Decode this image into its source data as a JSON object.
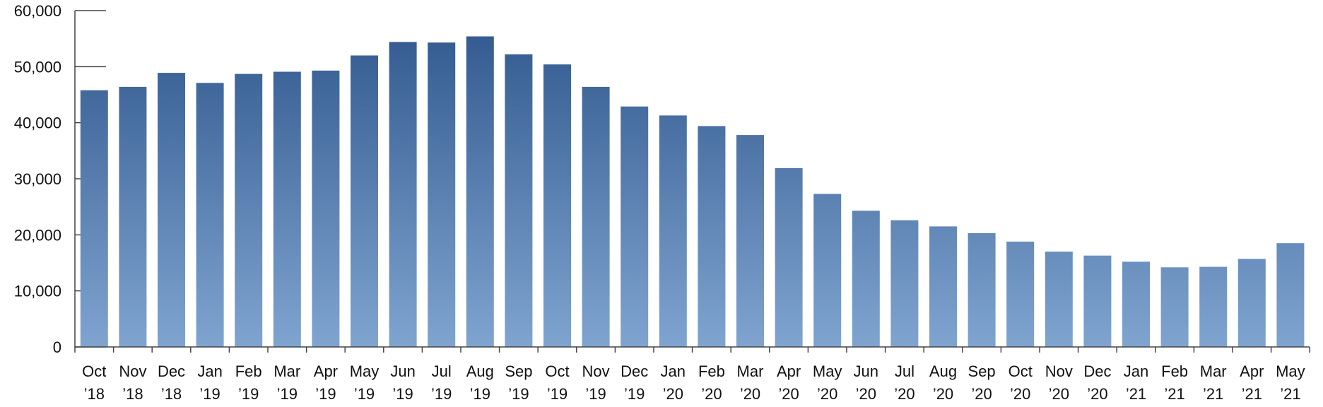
{
  "chart_data": {
    "type": "bar",
    "title": "",
    "xlabel": "",
    "ylabel": "",
    "ylim": [
      0,
      60000
    ],
    "yticks": [
      "0",
      "10,000",
      "20,000",
      "30,000",
      "40,000",
      "50,000",
      "60,000"
    ],
    "grid": false,
    "legend": "none",
    "categories": [
      {
        "month": "Oct",
        "year": "’18"
      },
      {
        "month": "Nov",
        "year": "’18"
      },
      {
        "month": "Dec",
        "year": "’18"
      },
      {
        "month": "Jan",
        "year": "’19"
      },
      {
        "month": "Feb",
        "year": "’19"
      },
      {
        "month": "Mar",
        "year": "’19"
      },
      {
        "month": "Apr",
        "year": "’19"
      },
      {
        "month": "May",
        "year": "’19"
      },
      {
        "month": "Jun",
        "year": "’19"
      },
      {
        "month": "Jul",
        "year": "’19"
      },
      {
        "month": "Aug",
        "year": "’19"
      },
      {
        "month": "Sep",
        "year": "’19"
      },
      {
        "month": "Oct",
        "year": "’19"
      },
      {
        "month": "Nov",
        "year": "’19"
      },
      {
        "month": "Dec",
        "year": "’19"
      },
      {
        "month": "Jan",
        "year": "’20"
      },
      {
        "month": "Feb",
        "year": "’20"
      },
      {
        "month": "Mar",
        "year": "’20"
      },
      {
        "month": "Apr",
        "year": "’20"
      },
      {
        "month": "May",
        "year": "’20"
      },
      {
        "month": "Jun",
        "year": "’20"
      },
      {
        "month": "Jul",
        "year": "’20"
      },
      {
        "month": "Aug",
        "year": "’20"
      },
      {
        "month": "Sep",
        "year": "’20"
      },
      {
        "month": "Oct",
        "year": "’20"
      },
      {
        "month": "Nov",
        "year": "’20"
      },
      {
        "month": "Dec",
        "year": "’20"
      },
      {
        "month": "Jan",
        "year": "’21"
      },
      {
        "month": "Feb",
        "year": "’21"
      },
      {
        "month": "Mar",
        "year": "’21"
      },
      {
        "month": "Apr",
        "year": "’21"
      },
      {
        "month": "May",
        "year": "’21"
      }
    ],
    "values": [
      45800,
      46400,
      48900,
      47100,
      48700,
      49100,
      49300,
      52000,
      54400,
      54300,
      55400,
      52200,
      50400,
      46400,
      42900,
      41300,
      39400,
      37800,
      31900,
      27300,
      24300,
      22600,
      21500,
      20300,
      18800,
      17000,
      16300,
      15200,
      14200,
      14300,
      15700,
      18500
    ],
    "colors": {
      "bar_top": "#2f568c",
      "bar_bottom": "#7fa4d0",
      "axis": "#444444"
    }
  }
}
